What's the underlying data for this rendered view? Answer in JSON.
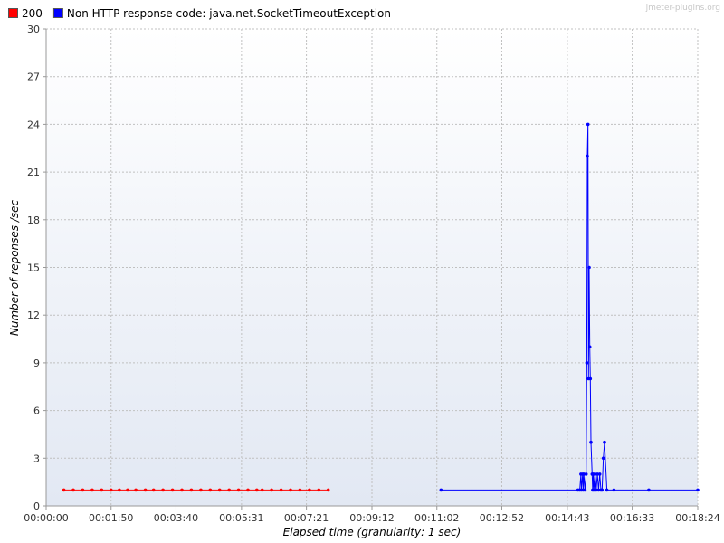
{
  "watermark": "jmeter-plugins.org",
  "chart_data": {
    "type": "line",
    "xlabel": "Elapsed time (granularity: 1 sec)",
    "ylabel": "Number of reponses /sec",
    "xlim": [
      0,
      1104
    ],
    "ylim": [
      0,
      30
    ],
    "yticks": [
      0,
      3,
      6,
      9,
      12,
      15,
      18,
      21,
      24,
      27,
      30
    ],
    "xticks": [
      {
        "value": 0,
        "label": "00:00:00"
      },
      {
        "value": 110,
        "label": "00:01:50"
      },
      {
        "value": 220,
        "label": "00:03:40"
      },
      {
        "value": 331,
        "label": "00:05:31"
      },
      {
        "value": 441,
        "label": "00:07:21"
      },
      {
        "value": 552,
        "label": "00:09:12"
      },
      {
        "value": 662,
        "label": "00:11:02"
      },
      {
        "value": 772,
        "label": "00:12:52"
      },
      {
        "value": 883,
        "label": "00:14:43"
      },
      {
        "value": 993,
        "label": "00:16:33"
      },
      {
        "value": 1104,
        "label": "00:18:24"
      }
    ],
    "grid": true,
    "legend_position": "top-left",
    "series": [
      {
        "name": "200",
        "color": "#ff0000",
        "x": [
          30,
          46,
          62,
          78,
          94,
          110,
          124,
          138,
          152,
          168,
          182,
          198,
          214,
          230,
          246,
          262,
          278,
          294,
          310,
          326,
          342,
          357,
          366,
          382,
          398,
          414,
          430,
          446,
          462,
          478
        ],
        "y": [
          1,
          1,
          1,
          1,
          1,
          1,
          1,
          1,
          1,
          1,
          1,
          1,
          1,
          1,
          1,
          1,
          1,
          1,
          1,
          1,
          1,
          1,
          1,
          1,
          1,
          1,
          1,
          1,
          1,
          1
        ]
      },
      {
        "name": "Non HTTP response code: java.net.SocketTimeoutException",
        "color": "#0000ff",
        "x": [
          669,
          901,
          904,
          906,
          907,
          909,
          910,
          911,
          913,
          915,
          916,
          917,
          918,
          919,
          920,
          921,
          922,
          923,
          925,
          926,
          927,
          928,
          930,
          932,
          934,
          936,
          938,
          940,
          942,
          944,
          946,
          950,
          962,
          1021,
          1104
        ],
        "y": [
          1,
          1,
          1,
          2,
          1,
          2,
          1,
          2,
          1,
          2,
          9,
          22,
          24,
          8,
          15,
          10,
          8,
          4,
          2,
          1,
          2,
          1,
          2,
          1,
          2,
          1,
          2,
          1,
          1,
          3,
          4,
          1,
          1,
          1,
          1
        ]
      }
    ]
  }
}
